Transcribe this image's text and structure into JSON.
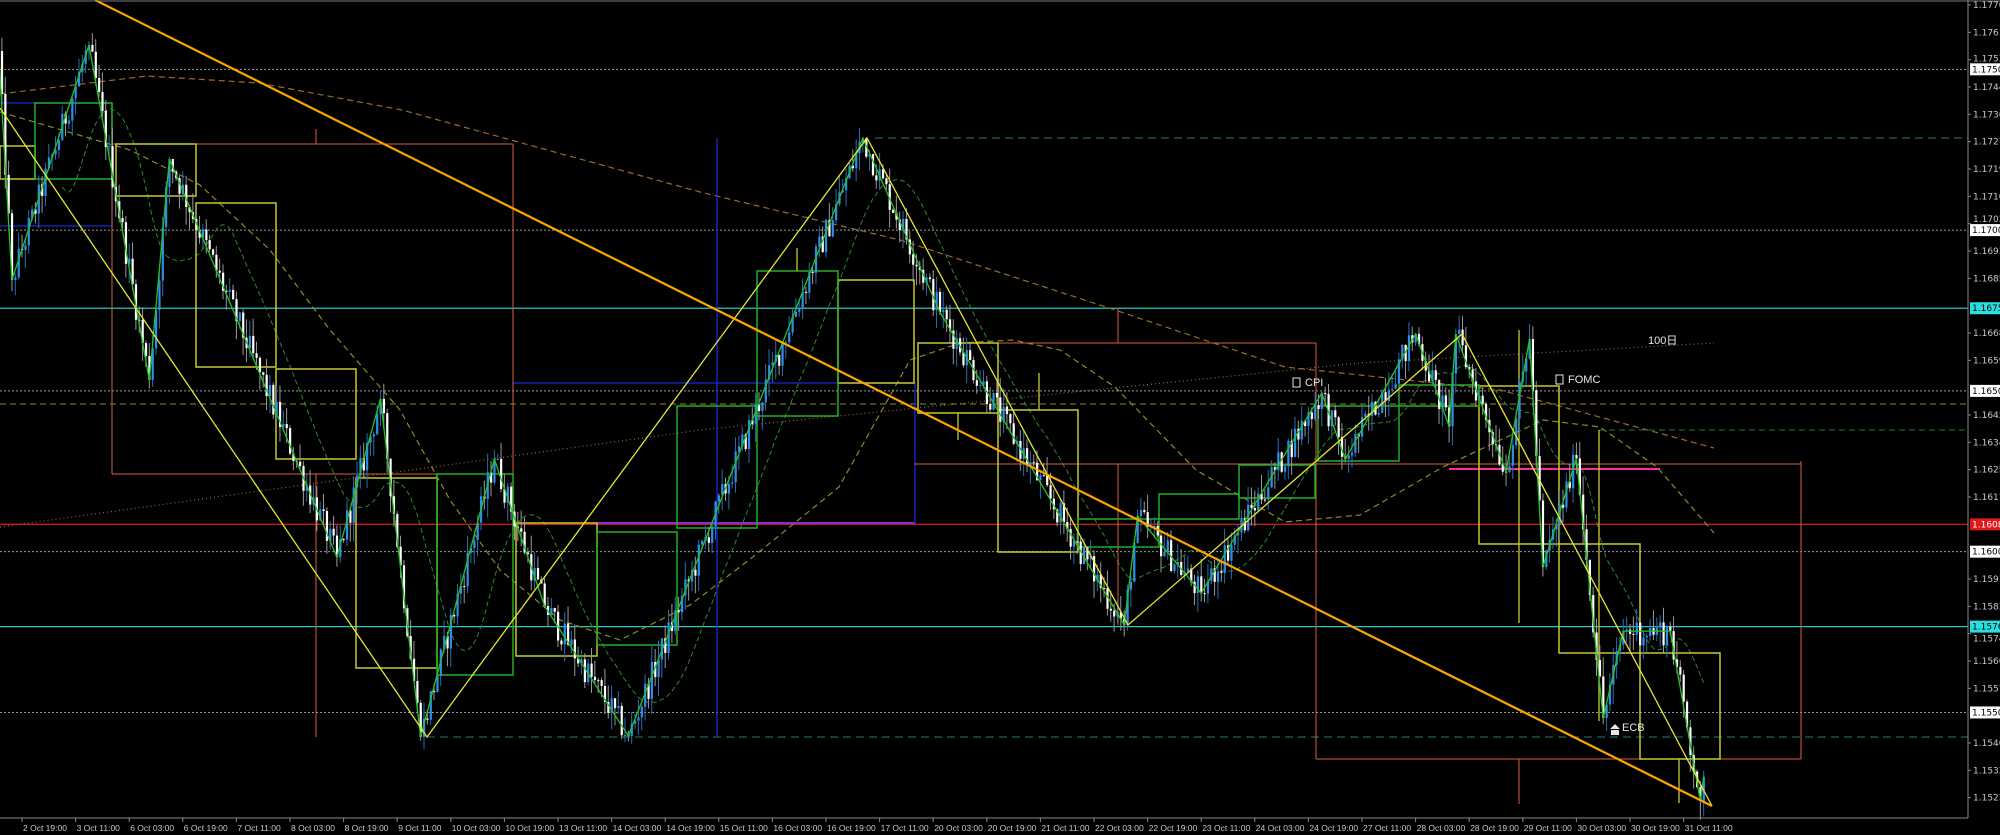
{
  "chart_data": {
    "type": "candlestick",
    "title": "",
    "timeframe_note": "",
    "ylim": [
      1.1515,
      1.17715
    ],
    "colors": {
      "background": "#000000",
      "bull_candle": "#2f8fe8",
      "bear_candle": "#ffffff",
      "grid_level": "#9a9a9a",
      "axis_text": "#c8c8c8",
      "zigzag": "#22c422",
      "trendline_main": "#ffa500",
      "trendline_thin": "#e6e632"
    },
    "x_tick_labels": [
      "2 Oct 19:00",
      "3 Oct 11:00",
      "6 Oct 03:00",
      "6 Oct 19:00",
      "7 Oct 11:00",
      "8 Oct 03:00",
      "8 Oct 19:00",
      "9 Oct 11:00",
      "10 Oct 03:00",
      "10 Oct 19:00",
      "13 Oct 11:00",
      "14 Oct 03:00",
      "14 Oct 19:00",
      "15 Oct 11:00",
      "16 Oct 03:00",
      "16 Oct 19:00",
      "17 Oct 11:00",
      "20 Oct 03:00",
      "20 Oct 19:00",
      "21 Oct 11:00",
      "22 Oct 03:00",
      "22 Oct 19:00",
      "23 Oct 11:00",
      "24 Oct 03:00",
      "24 Oct 19:00",
      "27 Oct 11:00",
      "28 Oct 03:00",
      "28 Oct 19:00",
      "29 Oct 11:00",
      "30 Oct 03:00",
      "30 Oct 19:00",
      "31 Oct 11:00"
    ],
    "y_tick_labels": [
      "1.17700",
      "1.17615",
      "1.17530",
      "1.17445",
      "1.17360",
      "1.17275",
      "1.17190",
      "1.17105",
      "1.17020",
      "1.16935",
      "1.16850",
      "1.16680",
      "1.16595",
      "1.16425",
      "1.16340",
      "1.16255",
      "1.16170",
      "1.15915",
      "1.15830",
      "1.15745",
      "1.15660",
      "1.15575",
      "1.15405",
      "1.15320",
      "1.15235"
    ],
    "price_path_pivots": [
      {
        "time": "2 Oct 12:00",
        "price": 1.17557
      },
      {
        "time": "2 Oct 16:00",
        "price": 1.16845
      },
      {
        "time": "3 Oct 15:00",
        "price": 1.17576
      },
      {
        "time": "6 Oct 09:00",
        "price": 1.16534
      },
      {
        "time": "6 Oct 15:00",
        "price": 1.17221
      },
      {
        "time": "8 Oct 17:00",
        "price": 1.15983
      },
      {
        "time": "9 Oct 06:00",
        "price": 1.16475
      },
      {
        "time": "9 Oct 18:00",
        "price": 1.15424
      },
      {
        "time": "10 Oct 16:00",
        "price": 1.16288
      },
      {
        "time": "13 Oct 07:00",
        "price": 1.15831
      },
      {
        "time": "14 Oct 08:00",
        "price": 1.15427
      },
      {
        "time": "17 Oct 06:00",
        "price": 1.17286
      },
      {
        "time": "20 Oct 05:00",
        "price": 1.16745
      },
      {
        "time": "22 Oct 12:00",
        "price": 1.15772
      },
      {
        "time": "22 Oct 16:00",
        "price": 1.16111
      },
      {
        "time": "23 Oct 11:00",
        "price": 1.15871
      },
      {
        "time": "24 Oct 23:00",
        "price": 1.16493
      },
      {
        "time": "27 Oct 06:00",
        "price": 1.16288
      },
      {
        "time": "28 Oct 03:00",
        "price": 1.16677
      },
      {
        "time": "28 Oct 13:00",
        "price": 1.1639
      },
      {
        "time": "28 Oct 15:00",
        "price": 1.16677
      },
      {
        "time": "29 Oct 06:00",
        "price": 1.16248
      },
      {
        "time": "29 Oct 13:00",
        "price": 1.16661
      },
      {
        "time": "29 Oct 17:00",
        "price": 1.15952
      },
      {
        "time": "30 Oct 03:00",
        "price": 1.1629
      },
      {
        "time": "30 Oct 11:00",
        "price": 1.15483
      },
      {
        "time": "30 Oct 17:00",
        "price": 1.15753
      },
      {
        "time": "31 Oct 07:00",
        "price": 1.15753
      },
      {
        "time": "31 Oct 16:00",
        "price": 1.15225
      },
      {
        "time": "31 Oct 17:00",
        "price": 1.153
      }
    ],
    "levels": [
      {
        "price": 1.175,
        "label": "1.17500",
        "style": "dotted",
        "color": "#9a9a9a",
        "label_bg": "#ffffff",
        "label_fg": "#000000"
      },
      {
        "price": 1.17,
        "label": "1.17000",
        "style": "dotted",
        "color": "#9a9a9a",
        "label_bg": "#ffffff",
        "label_fg": "#000000"
      },
      {
        "price": 1.16757,
        "label": "1.16757",
        "style": "solid",
        "color": "#29c4c4",
        "label_bg": "#29e0e0",
        "label_fg": "#000000"
      },
      {
        "price": 1.165,
        "label": "1.16500",
        "style": "dotted",
        "color": "#9a9a9a",
        "label_bg": "#ffffff",
        "label_fg": "#000000"
      },
      {
        "price": 1.16085,
        "label": "1.16085",
        "style": "solid",
        "color": "#c21a1a",
        "label_bg": "#e01818",
        "label_fg": "#ffffff"
      },
      {
        "price": 1.16,
        "label": "1.16000",
        "style": "dotted",
        "color": "#9a9a9a",
        "label_bg": "#ffffff",
        "label_fg": "#000000"
      },
      {
        "price": 1.15767,
        "label": "1.15767",
        "style": "solid",
        "color": "#29c4c4",
        "label_bg": "#29e0e0",
        "label_fg": "#000000"
      },
      {
        "price": 1.155,
        "label": "1.15500",
        "style": "dotted",
        "color": "#9a9a9a",
        "label_bg": "#ffffff",
        "label_fg": "#000000"
      }
    ],
    "events": [
      {
        "label": "CPI",
        "icon": "document-icon"
      },
      {
        "label": "FOMC",
        "icon": "document-icon"
      },
      {
        "label": "ECB",
        "icon": "bank-icon"
      }
    ],
    "ma_label": "100日"
  }
}
